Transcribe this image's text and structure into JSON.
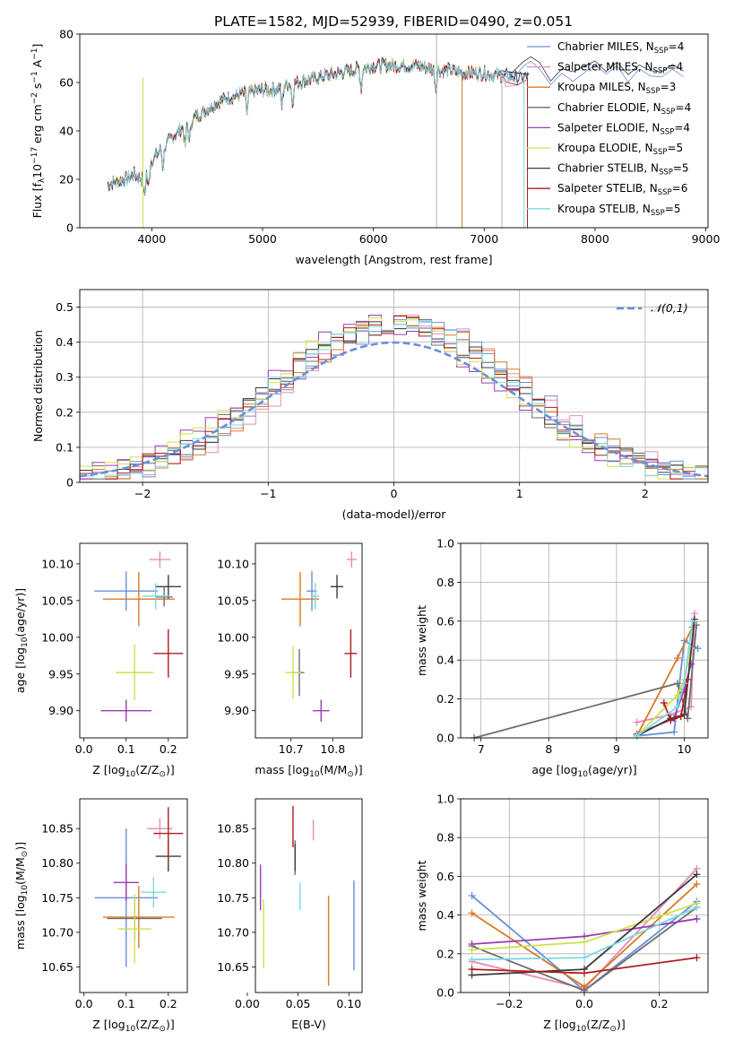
{
  "title": "PLATE=1582, MJD=52939, FIBERID=0490, z=0.051",
  "colors": {
    "Chabrier MILES": "#6a8fd8",
    "Salpeter MILES": "#e88ab8",
    "Kroupa MILES": "#d97a24",
    "Chabrier ELODIE": "#6e6e6e",
    "Salpeter ELODIE": "#9a3cb4",
    "Kroupa ELODIE": "#cfe04a",
    "Chabrier STELIB": "#3c3c3c",
    "Salpeter STELIB": "#b01c1c",
    "Kroupa STELIB": "#7ad9e0"
  },
  "legend_labels": {
    "prefix": [
      "Chabrier MILES, N",
      "Salpeter MILES, N",
      "Kroupa MILES, N",
      "Chabrier ELODIE, N",
      "Salpeter ELODIE, N",
      "Kroupa ELODIE, N",
      "Chabrier STELIB, N",
      "Salpeter STELIB, N",
      "Kroupa STELIB, N"
    ],
    "sub": "SSP",
    "suffix": [
      "=4",
      "=4",
      "=3",
      "=4",
      "=4",
      "=5",
      "=5",
      "=6",
      "=5"
    ]
  },
  "chart_data": [
    {
      "id": "spectrum",
      "type": "line",
      "xlabel": "wavelength [Angstrom, rest frame]",
      "ylabel_parts": [
        "Flux [f",
        "λ",
        "10",
        "−17",
        " erg cm",
        "−2",
        " s",
        "−1",
        " A",
        "−1",
        "]"
      ],
      "xlim": [
        3350,
        9020
      ],
      "ylim": [
        0,
        80
      ],
      "xticks": [
        4000,
        5000,
        6000,
        7000,
        8000,
        9000
      ],
      "yticks": [
        0,
        20,
        40,
        60,
        80
      ],
      "grid": false,
      "legend": "top-right",
      "continuum": {
        "x": [
          3600,
          3680,
          3760,
          3840,
          3920,
          4000,
          4100,
          4200,
          4300,
          4400,
          4500,
          4600,
          4700,
          4800,
          4900,
          5000,
          5100,
          5200,
          5300,
          5400,
          5500,
          5600,
          5700,
          5800,
          5900,
          6000,
          6100,
          6200,
          6300,
          6400,
          6500,
          6600,
          6700,
          6800,
          6900,
          7000,
          7100,
          7200,
          7300,
          7400
        ],
        "y": [
          18,
          19,
          20,
          22,
          20,
          28,
          33,
          38,
          42,
          46,
          49,
          52,
          54,
          55,
          56,
          57,
          57,
          59,
          60,
          61,
          62,
          63,
          64,
          65,
          66,
          67,
          67,
          67,
          67,
          67,
          66,
          65,
          65,
          64,
          64,
          64,
          63,
          63,
          62,
          62
        ]
      },
      "absorption_lines": [
        3934,
        3969,
        4101,
        4300,
        4340,
        4861,
        5175,
        5270,
        5890,
        6563
      ],
      "red_ext": {
        "x": [
          7150,
          7250,
          7350,
          7420,
          7500,
          7600,
          7700,
          7800,
          7900,
          8000,
          8100,
          8200,
          8300,
          8400,
          8500,
          8600,
          8700,
          8800
        ],
        "y": [
          64,
          63,
          67,
          70,
          66,
          60,
          64,
          62,
          65,
          68,
          64,
          67,
          62,
          66,
          64,
          63,
          66,
          64
        ]
      }
    },
    {
      "id": "residuals",
      "type": "histogram",
      "xlabel": "(data-model)/error",
      "ylabel": "Normed distribution",
      "xlim": [
        -2.5,
        2.5
      ],
      "ylim": [
        0,
        0.55
      ],
      "xticks": [
        -2,
        -1,
        0,
        1,
        2
      ],
      "yticks": [
        0,
        0.1,
        0.2,
        0.3,
        0.4,
        0.5
      ],
      "grid": true,
      "legend": "top-right",
      "bins": 50,
      "series": [
        {
          "name": "Chabrier MILES",
          "offset": 0.2,
          "seed": 1
        },
        {
          "name": "Salpeter MILES",
          "offset": 0.25,
          "seed": 2
        },
        {
          "name": "Kroupa MILES",
          "offset": 0.15,
          "seed": 3
        },
        {
          "name": "Chabrier ELODIE",
          "offset": -0.05,
          "seed": 4
        },
        {
          "name": "Salpeter ELODIE",
          "offset": -0.2,
          "seed": 5
        },
        {
          "name": "Kroupa ELODIE",
          "offset": -0.15,
          "seed": 6
        },
        {
          "name": "Chabrier STELIB",
          "offset": 0.0,
          "seed": 7
        },
        {
          "name": "Salpeter STELIB",
          "offset": 0.05,
          "seed": 8
        },
        {
          "name": "Kroupa STELIB",
          "offset": 0.0,
          "seed": 9
        }
      ],
      "reference_curve": {
        "label": "𝒩(0,1)",
        "mean": 0,
        "sigma": 1
      }
    },
    {
      "id": "age_vs_Z",
      "type": "errorbar",
      "xlabel_parts": [
        "Z [log",
        "10",
        "(Z/Z",
        "⊙",
        ")]"
      ],
      "ylabel_parts": [
        "age  [log",
        "10",
        "(age/yr)]"
      ],
      "xlim": [
        -0.01,
        0.245
      ],
      "ylim": [
        9.863,
        10.128
      ],
      "xticks": [
        0.0,
        0.1,
        0.2
      ],
      "xticklabels": [
        "0.0",
        "0.1",
        "0.2"
      ],
      "yticks": [
        9.9,
        9.95,
        10.0,
        10.05,
        10.1
      ],
      "yticklabels": [
        "9.90",
        "9.95",
        "10.00",
        "10.05",
        "10.10"
      ],
      "points": [
        {
          "name": "Chabrier MILES",
          "x": 0.1,
          "xerr": 0.075,
          "y": 10.063,
          "yerr": 0.027
        },
        {
          "name": "Salpeter MILES",
          "x": 0.18,
          "xerr": 0.025,
          "y": 10.106,
          "yerr": 0.011
        },
        {
          "name": "Kroupa MILES",
          "x": 0.13,
          "xerr": 0.085,
          "y": 10.052,
          "yerr": 0.037
        },
        {
          "name": "Chabrier ELODIE",
          "x": 0.19,
          "xerr": 0.02,
          "y": 10.055,
          "yerr": 0.013
        },
        {
          "name": "Salpeter ELODIE",
          "x": 0.1,
          "xerr": 0.06,
          "y": 9.9,
          "yerr": 0.015
        },
        {
          "name": "Kroupa ELODIE",
          "x": 0.12,
          "xerr": 0.045,
          "y": 9.952,
          "yerr": 0.038
        },
        {
          "name": "Chabrier STELIB",
          "x": 0.2,
          "xerr": 0.03,
          "y": 10.069,
          "yerr": 0.016
        },
        {
          "name": "Salpeter STELIB",
          "x": 0.2,
          "xerr": 0.035,
          "y": 9.978,
          "yerr": 0.033
        },
        {
          "name": "Kroupa STELIB",
          "x": 0.17,
          "xerr": 0.032,
          "y": 10.056,
          "yerr": 0.018
        }
      ]
    },
    {
      "id": "age_vs_mass",
      "type": "errorbar",
      "xlabel_parts": [
        "mass [log",
        "10",
        "(M/M",
        "⊙",
        ")]"
      ],
      "ylabel_parts": [],
      "xlim": [
        10.615,
        10.87
      ],
      "ylim": [
        9.863,
        10.128
      ],
      "xticks": [
        10.7,
        10.8
      ],
      "xticklabels": [
        "10.7",
        "10.8"
      ],
      "yticks": [
        9.9,
        9.95,
        10.0,
        10.05,
        10.1
      ],
      "yticklabels": [
        "9.90",
        "9.95",
        "10.00",
        "10.05",
        "10.10"
      ],
      "points": [
        {
          "name": "Chabrier MILES",
          "x": 10.75,
          "xerr": 0.012,
          "y": 10.063,
          "yerr": 0.027
        },
        {
          "name": "Salpeter MILES",
          "x": 10.845,
          "xerr": 0.012,
          "y": 10.106,
          "yerr": 0.011
        },
        {
          "name": "Kroupa MILES",
          "x": 10.722,
          "xerr": 0.045,
          "y": 10.052,
          "yerr": 0.037
        },
        {
          "name": "Chabrier ELODIE",
          "x": 10.72,
          "xerr": 0.012,
          "y": 9.952,
          "yerr": 0.032
        },
        {
          "name": "Salpeter ELODIE",
          "x": 10.772,
          "xerr": 0.02,
          "y": 9.9,
          "yerr": 0.015
        },
        {
          "name": "Kroupa ELODIE",
          "x": 10.705,
          "xerr": 0.018,
          "y": 9.952,
          "yerr": 0.036
        },
        {
          "name": "Chabrier STELIB",
          "x": 10.81,
          "xerr": 0.015,
          "y": 10.069,
          "yerr": 0.016
        },
        {
          "name": "Salpeter STELIB",
          "x": 10.843,
          "xerr": 0.015,
          "y": 9.978,
          "yerr": 0.033
        },
        {
          "name": "Kroupa STELIB",
          "x": 10.758,
          "xerr": 0.01,
          "y": 10.056,
          "yerr": 0.018
        }
      ]
    },
    {
      "id": "mass_weight_vs_age",
      "type": "line",
      "xlabel_parts": [
        "age  [log",
        "10",
        "(age/yr)]"
      ],
      "ylabel": "mass weight",
      "xlim": [
        6.7,
        10.35
      ],
      "ylim": [
        0,
        1
      ],
      "xticks": [
        7,
        8,
        9,
        10
      ],
      "yticks": [
        0,
        0.2,
        0.4,
        0.6,
        0.8,
        1.0
      ],
      "yticklabels": [
        "0.0",
        "0.2",
        "0.4",
        "0.6",
        "0.8",
        "1.0"
      ],
      "grid": true,
      "series": [
        {
          "name": "Chabrier MILES",
          "x": [
            9.3,
            9.85,
            10.0,
            10.2
          ],
          "y": [
            0.01,
            0.03,
            0.5,
            0.46
          ]
        },
        {
          "name": "Salpeter MILES",
          "x": [
            9.3,
            9.8,
            10.1,
            10.15
          ],
          "y": [
            0.08,
            0.12,
            0.16,
            0.64
          ]
        },
        {
          "name": "Kroupa MILES",
          "x": [
            9.3,
            9.9,
            10.12
          ],
          "y": [
            0.01,
            0.41,
            0.57
          ]
        },
        {
          "name": "Chabrier ELODIE",
          "x": [
            6.9,
            9.9,
            10.05,
            10.18
          ],
          "y": [
            0.0,
            0.28,
            0.1,
            0.58
          ]
        },
        {
          "name": "Salpeter ELODIE",
          "x": [
            9.3,
            9.85,
            10.0,
            10.1
          ],
          "y": [
            0.02,
            0.1,
            0.25,
            0.38
          ]
        },
        {
          "name": "Kroupa ELODIE",
          "x": [
            9.3,
            9.9,
            10.0,
            10.1
          ],
          "y": [
            0.01,
            0.22,
            0.3,
            0.46
          ]
        },
        {
          "name": "Chabrier STELIB",
          "x": [
            9.3,
            9.8,
            10.0,
            10.15
          ],
          "y": [
            0.01,
            0.1,
            0.12,
            0.61
          ]
        },
        {
          "name": "Salpeter STELIB",
          "x": [
            9.7,
            9.8,
            9.95,
            10.05
          ],
          "y": [
            0.18,
            0.09,
            0.11,
            0.3
          ]
        },
        {
          "name": "Kroupa STELIB",
          "x": [
            9.3,
            9.9,
            10.0,
            10.12
          ],
          "y": [
            0.01,
            0.16,
            0.28,
            0.6
          ]
        }
      ]
    },
    {
      "id": "mass_vs_Z",
      "type": "errorbar",
      "xlabel_parts": [
        "Z [log",
        "10",
        "(Z/Z",
        "⊙",
        ")]"
      ],
      "ylabel_parts": [
        "mass [log",
        "10",
        "(M/M",
        "⊙",
        ")]"
      ],
      "xlim": [
        -0.01,
        0.245
      ],
      "ylim": [
        10.613,
        10.893
      ],
      "xticks": [
        0.0,
        0.1,
        0.2
      ],
      "xticklabels": [
        "0.0",
        "0.1",
        "0.2"
      ],
      "yticks": [
        10.65,
        10.7,
        10.75,
        10.8,
        10.85
      ],
      "yticklabels": [
        "10.65",
        "10.70",
        "10.75",
        "10.80",
        "10.85"
      ],
      "points": [
        {
          "name": "Chabrier MILES",
          "x": 0.1,
          "xerr": 0.075,
          "y": 10.75,
          "yerr": 0.1
        },
        {
          "name": "Salpeter MILES",
          "x": 0.18,
          "xerr": 0.03,
          "y": 10.85,
          "yerr": 0.015
        },
        {
          "name": "Kroupa MILES",
          "x": 0.13,
          "xerr": 0.085,
          "y": 10.722,
          "yerr": 0.045
        },
        {
          "name": "Chabrier ELODIE",
          "x": 0.12,
          "xerr": 0.065,
          "y": 10.72,
          "yerr": 0.03
        },
        {
          "name": "Salpeter ELODIE",
          "x": 0.1,
          "xerr": 0.03,
          "y": 10.772,
          "yerr": 0.027
        },
        {
          "name": "Kroupa ELODIE",
          "x": 0.12,
          "xerr": 0.04,
          "y": 10.705,
          "yerr": 0.05
        },
        {
          "name": "Chabrier STELIB",
          "x": 0.2,
          "xerr": 0.03,
          "y": 10.81,
          "yerr": 0.022
        },
        {
          "name": "Salpeter STELIB",
          "x": 0.2,
          "xerr": 0.035,
          "y": 10.843,
          "yerr": 0.038
        },
        {
          "name": "Kroupa STELIB",
          "x": 0.165,
          "xerr": 0.03,
          "y": 10.758,
          "yerr": 0.022
        }
      ]
    },
    {
      "id": "mass_vs_EBV",
      "type": "errorbar",
      "xlabel": "E(B-V)",
      "ylabel_parts": [],
      "xlim": [
        0.008,
        0.113
      ],
      "ylim": [
        10.613,
        10.893
      ],
      "xticks": [
        0.0,
        0.05,
        0.1
      ],
      "xticklabels": [
        "0.00",
        "0.05",
        "0.10"
      ],
      "yticks": [
        10.65,
        10.7,
        10.75,
        10.8,
        10.85
      ],
      "yticklabels": [
        "10.65",
        "10.70",
        "10.75",
        "10.80",
        "10.85"
      ],
      "points": [
        {
          "name": "Chabrier MILES",
          "x": 0.105,
          "xerr": 0.0,
          "y": 10.71,
          "yerr": 0.065
        },
        {
          "name": "Salpeter MILES",
          "x": 0.065,
          "xerr": 0.0,
          "y": 10.848,
          "yerr": 0.015
        },
        {
          "name": "Kroupa MILES",
          "x": 0.08,
          "xerr": 0.0,
          "y": 10.688,
          "yerr": 0.065
        },
        {
          "name": "Chabrier ELODIE",
          "x": 0.047,
          "xerr": 0.0,
          "y": 10.808,
          "yerr": 0.025
        },
        {
          "name": "Salpeter ELODIE",
          "x": 0.013,
          "xerr": 0.0,
          "y": 10.765,
          "yerr": 0.033
        },
        {
          "name": "Kroupa ELODIE",
          "x": 0.016,
          "xerr": 0.0,
          "y": 10.698,
          "yerr": 0.05
        },
        {
          "name": "Chabrier STELIB",
          "x": 0.047,
          "xerr": 0.0,
          "y": 10.808,
          "yerr": 0.02
        },
        {
          "name": "Salpeter STELIB",
          "x": 0.045,
          "xerr": 0.0,
          "y": 10.853,
          "yerr": 0.03
        },
        {
          "name": "Kroupa STELIB",
          "x": 0.052,
          "xerr": 0.0,
          "y": 10.752,
          "yerr": 0.02
        }
      ]
    },
    {
      "id": "mass_weight_vs_Z",
      "type": "line",
      "xlabel_parts": [
        "Z [log",
        "10",
        "(Z/Z",
        "⊙",
        ")]"
      ],
      "ylabel": "mass weight",
      "xlim": [
        -0.33,
        0.33
      ],
      "ylim": [
        0,
        1
      ],
      "xticks": [
        -0.2,
        0.0,
        0.2
      ],
      "xticklabels": [
        "−0.2",
        "0.0",
        "0.2"
      ],
      "yticks": [
        0,
        0.2,
        0.4,
        0.6,
        0.8,
        1.0
      ],
      "yticklabels": [
        "0.0",
        "0.2",
        "0.4",
        "0.6",
        "0.8",
        "1.0"
      ],
      "grid": true,
      "series": [
        {
          "name": "Chabrier MILES",
          "x": [
            -0.3,
            0.0,
            0.3
          ],
          "y": [
            0.5,
            0.01,
            0.47
          ]
        },
        {
          "name": "Salpeter MILES",
          "x": [
            -0.3,
            0.0,
            0.3
          ],
          "y": [
            0.16,
            0.02,
            0.64
          ]
        },
        {
          "name": "Kroupa MILES",
          "x": [
            -0.3,
            0.0,
            0.3
          ],
          "y": [
            0.41,
            0.03,
            0.56
          ]
        },
        {
          "name": "Chabrier ELODIE",
          "x": [
            -0.3,
            0.0,
            0.3
          ],
          "y": [
            0.24,
            0.01,
            0.44
          ]
        },
        {
          "name": "Salpeter ELODIE",
          "x": [
            -0.3,
            0.0,
            0.3
          ],
          "y": [
            0.25,
            0.29,
            0.38
          ]
        },
        {
          "name": "Kroupa ELODIE",
          "x": [
            -0.3,
            0.0,
            0.3
          ],
          "y": [
            0.22,
            0.26,
            0.46
          ]
        },
        {
          "name": "Chabrier STELIB",
          "x": [
            -0.3,
            0.0,
            0.3
          ],
          "y": [
            0.09,
            0.12,
            0.61
          ]
        },
        {
          "name": "Salpeter STELIB",
          "x": [
            -0.3,
            0.0,
            0.3
          ],
          "y": [
            0.12,
            0.1,
            0.18
          ]
        },
        {
          "name": "Kroupa STELIB",
          "x": [
            -0.3,
            0.0,
            0.3
          ],
          "y": [
            0.17,
            0.18,
            0.44
          ]
        }
      ]
    }
  ]
}
